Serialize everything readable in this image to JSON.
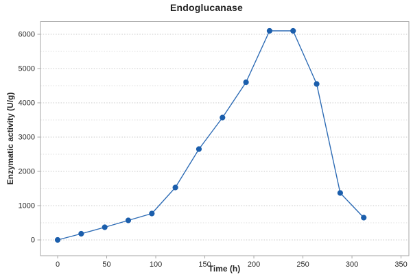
{
  "title": "Endoglucanase",
  "chart_data": {
    "type": "line",
    "title": "Endoglucanase",
    "xlabel": "Time (h)",
    "ylabel": "Enzymatic activity (U/g)",
    "series": [
      {
        "name": "Endoglucanase",
        "x": [
          0,
          24,
          48,
          72,
          96,
          120,
          144,
          168,
          192,
          216,
          240,
          264,
          288,
          312
        ],
        "y": [
          0,
          180,
          370,
          570,
          770,
          1530,
          2650,
          3570,
          4600,
          6100,
          6100,
          4550,
          1370,
          650
        ]
      }
    ],
    "xlim": [
      -17.5,
      358
    ],
    "ylim": [
      -460,
      6370
    ],
    "xticks": [
      0,
      50,
      100,
      150,
      200,
      250,
      300,
      350
    ],
    "yticks": [
      0,
      1000,
      2000,
      3000,
      4000,
      5000,
      6000
    ],
    "y_minor_step": 500,
    "grid": "horizontal-dashed",
    "legend_position": "none",
    "colors": {
      "line": "#2e6cb5",
      "marker": "#1b5eac",
      "grid_major": "#c9c9c9",
      "grid_minor": "#dedede",
      "axis": "#a6a6a6",
      "tick_text": "#262626"
    }
  }
}
